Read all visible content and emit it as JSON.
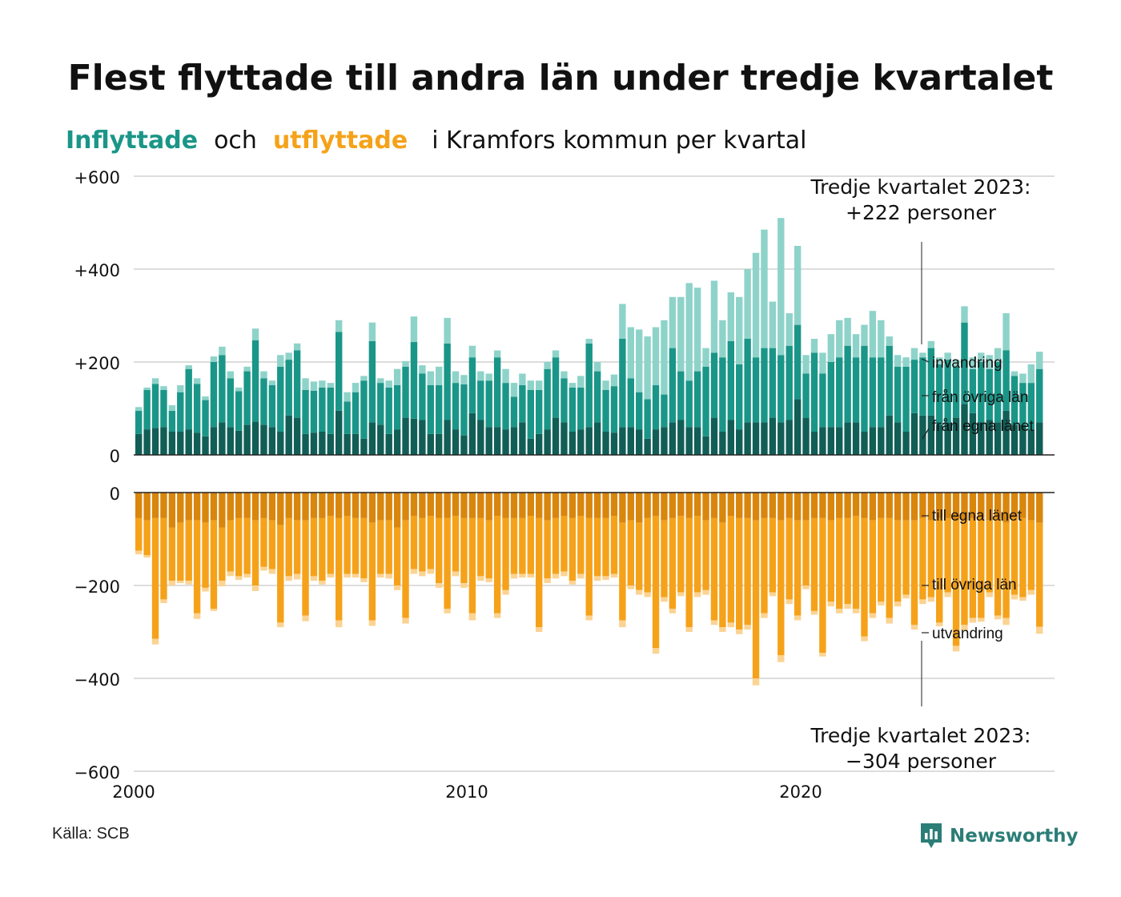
{
  "title": "Flest flyttade till andra län under tredje kvartalet",
  "subtitle": {
    "in_word": "Inflyttade",
    "and_word": "och",
    "out_word": "utflyttade",
    "rest": "i Kramfors kommun per kvartal"
  },
  "source": "Källa: SCB",
  "logo": {
    "text": "Newsworthy",
    "icon": "newsworthy-chart-icon"
  },
  "colors": {
    "in_own": "#115e56",
    "in_other": "#1a9688",
    "in_abroad": "#8ed3c9",
    "out_own": "#d9860d",
    "out_other": "#f5a21a",
    "out_abroad": "#fbd393",
    "inflyttade": "#1a9688",
    "utflyttade": "#f5a21a"
  },
  "chart_data": {
    "type": "bar",
    "stacked": true,
    "x_axis": {
      "ticks": [
        "2000",
        "2010",
        "2020"
      ],
      "range": [
        "2000 Q1",
        "2027 Q4"
      ]
    },
    "top_panel": {
      "y_ticks": [
        "+600",
        "+400",
        "+200",
        "0"
      ],
      "ylim": [
        0,
        600
      ],
      "segment_labels": [
        "invandring",
        "från övriga län",
        "från egna länet"
      ]
    },
    "bottom_panel": {
      "y_ticks": [
        "0",
        "−200",
        "−400",
        "−600"
      ],
      "ylim": [
        -600,
        0
      ],
      "segment_labels": [
        "till egna länet",
        "till övriga län",
        "utvandring"
      ]
    },
    "annotations": [
      {
        "line1": "Tredje kvartalet 2023:",
        "line2": "+222 personer"
      },
      {
        "line1": "Tredje kvartalet 2023:",
        "line2": "−304 personer"
      }
    ],
    "grid": true,
    "legend": "inline labels right",
    "first_quarter": "2000 Q1",
    "in_own": [
      45,
      55,
      58,
      60,
      50,
      50,
      55,
      48,
      40,
      60,
      70,
      60,
      52,
      65,
      72,
      65,
      60,
      50,
      85,
      80,
      45,
      48,
      50,
      45,
      95,
      45,
      45,
      35,
      70,
      65,
      45,
      55,
      80,
      78,
      75,
      45,
      45,
      75,
      55,
      42,
      90,
      75,
      60,
      60,
      55,
      60,
      70,
      35,
      45,
      55,
      80,
      70,
      50,
      55,
      60,
      70,
      50,
      48,
      60,
      60,
      55,
      35,
      55,
      60,
      70,
      75,
      60,
      60,
      40,
      80,
      50,
      75,
      55,
      70,
      70,
      70,
      80,
      70,
      75,
      120,
      80,
      50,
      60,
      60,
      60,
      70,
      70,
      50,
      60,
      60,
      85,
      70,
      50,
      90,
      85,
      85,
      65,
      70,
      80,
      110,
      90,
      70,
      75,
      70,
      95,
      65,
      65,
      55,
      70
    ],
    "in_other": [
      50,
      85,
      95,
      80,
      45,
      85,
      130,
      105,
      78,
      140,
      145,
      105,
      85,
      115,
      175,
      100,
      90,
      140,
      120,
      145,
      95,
      90,
      95,
      100,
      170,
      70,
      90,
      125,
      175,
      90,
      100,
      95,
      110,
      165,
      100,
      105,
      105,
      165,
      100,
      110,
      120,
      85,
      100,
      150,
      100,
      65,
      80,
      105,
      95,
      130,
      130,
      95,
      95,
      90,
      180,
      110,
      90,
      100,
      190,
      105,
      80,
      85,
      95,
      70,
      160,
      105,
      100,
      120,
      150,
      140,
      160,
      170,
      140,
      180,
      140,
      160,
      150,
      145,
      160,
      160,
      95,
      170,
      115,
      140,
      150,
      165,
      140,
      185,
      150,
      150,
      150,
      120,
      140,
      115,
      125,
      145,
      130,
      135,
      110,
      175,
      95,
      130,
      110,
      130,
      130,
      105,
      90,
      100,
      115
    ],
    "in_abroad": [
      8,
      5,
      12,
      8,
      12,
      15,
      8,
      12,
      8,
      12,
      18,
      15,
      8,
      10,
      25,
      15,
      10,
      25,
      15,
      15,
      25,
      20,
      15,
      10,
      25,
      20,
      20,
      10,
      40,
      10,
      15,
      35,
      12,
      55,
      18,
      30,
      40,
      55,
      25,
      20,
      25,
      20,
      15,
      15,
      30,
      30,
      25,
      20,
      20,
      15,
      15,
      15,
      10,
      25,
      10,
      20,
      20,
      25,
      75,
      110,
      135,
      135,
      125,
      160,
      110,
      160,
      210,
      180,
      40,
      155,
      80,
      105,
      145,
      150,
      225,
      255,
      100,
      295,
      70,
      170,
      40,
      30,
      45,
      60,
      80,
      60,
      50,
      45,
      100,
      80,
      20,
      25,
      20,
      25,
      10,
      15,
      15,
      15,
      15,
      35,
      25,
      20,
      30,
      30,
      80,
      10,
      20,
      40,
      37
    ],
    "out_own": [
      55,
      60,
      55,
      55,
      75,
      65,
      60,
      60,
      65,
      60,
      75,
      60,
      55,
      55,
      60,
      55,
      60,
      70,
      55,
      60,
      60,
      55,
      55,
      50,
      55,
      50,
      55,
      55,
      65,
      60,
      60,
      75,
      60,
      50,
      55,
      50,
      55,
      55,
      50,
      55,
      55,
      55,
      60,
      50,
      55,
      55,
      55,
      50,
      55,
      60,
      55,
      50,
      55,
      50,
      55,
      55,
      55,
      50,
      65,
      60,
      65,
      55,
      50,
      60,
      55,
      50,
      55,
      50,
      60,
      55,
      65,
      50,
      55,
      55,
      60,
      55,
      55,
      60,
      55,
      60,
      60,
      55,
      55,
      60,
      55,
      55,
      50,
      55,
      60,
      55,
      55,
      60,
      60,
      60,
      55,
      60,
      55,
      55,
      60,
      60,
      55,
      55,
      60,
      55,
      65,
      55,
      55,
      60,
      65
    ],
    "out_other": [
      70,
      75,
      260,
      175,
      115,
      125,
      130,
      200,
      140,
      190,
      115,
      110,
      125,
      120,
      140,
      105,
      105,
      210,
      125,
      115,
      205,
      125,
      135,
      125,
      220,
      125,
      120,
      130,
      210,
      115,
      115,
      125,
      210,
      115,
      115,
      115,
      140,
      195,
      120,
      140,
      205,
      125,
      125,
      210,
      155,
      120,
      120,
      125,
      235,
      125,
      120,
      120,
      135,
      125,
      210,
      125,
      125,
      125,
      210,
      140,
      145,
      160,
      285,
      165,
      195,
      165,
      235,
      165,
      150,
      220,
      225,
      230,
      240,
      230,
      340,
      205,
      160,
      290,
      175,
      205,
      140,
      200,
      290,
      175,
      195,
      185,
      200,
      255,
      200,
      180,
      215,
      175,
      160,
      225,
      175,
      165,
      225,
      160,
      270,
      225,
      215,
      215,
      155,
      210,
      205,
      165,
      170,
      150,
      224
    ],
    "out_abroad": [
      8,
      5,
      12,
      8,
      10,
      5,
      8,
      12,
      8,
      5,
      12,
      10,
      8,
      8,
      12,
      8,
      10,
      10,
      10,
      12,
      12,
      10,
      8,
      8,
      15,
      8,
      8,
      8,
      12,
      8,
      10,
      10,
      12,
      10,
      10,
      10,
      10,
      10,
      10,
      10,
      15,
      10,
      8,
      10,
      10,
      10,
      8,
      8,
      10,
      10,
      10,
      10,
      8,
      10,
      10,
      10,
      8,
      8,
      15,
      8,
      10,
      10,
      12,
      10,
      10,
      8,
      10,
      10,
      10,
      10,
      10,
      10,
      10,
      10,
      15,
      10,
      8,
      15,
      10,
      10,
      8,
      8,
      8,
      10,
      10,
      10,
      10,
      10,
      10,
      8,
      12,
      10,
      8,
      10,
      10,
      10,
      8,
      10,
      12,
      12,
      10,
      8,
      10,
      8,
      15,
      10,
      8,
      10,
      15
    ]
  }
}
